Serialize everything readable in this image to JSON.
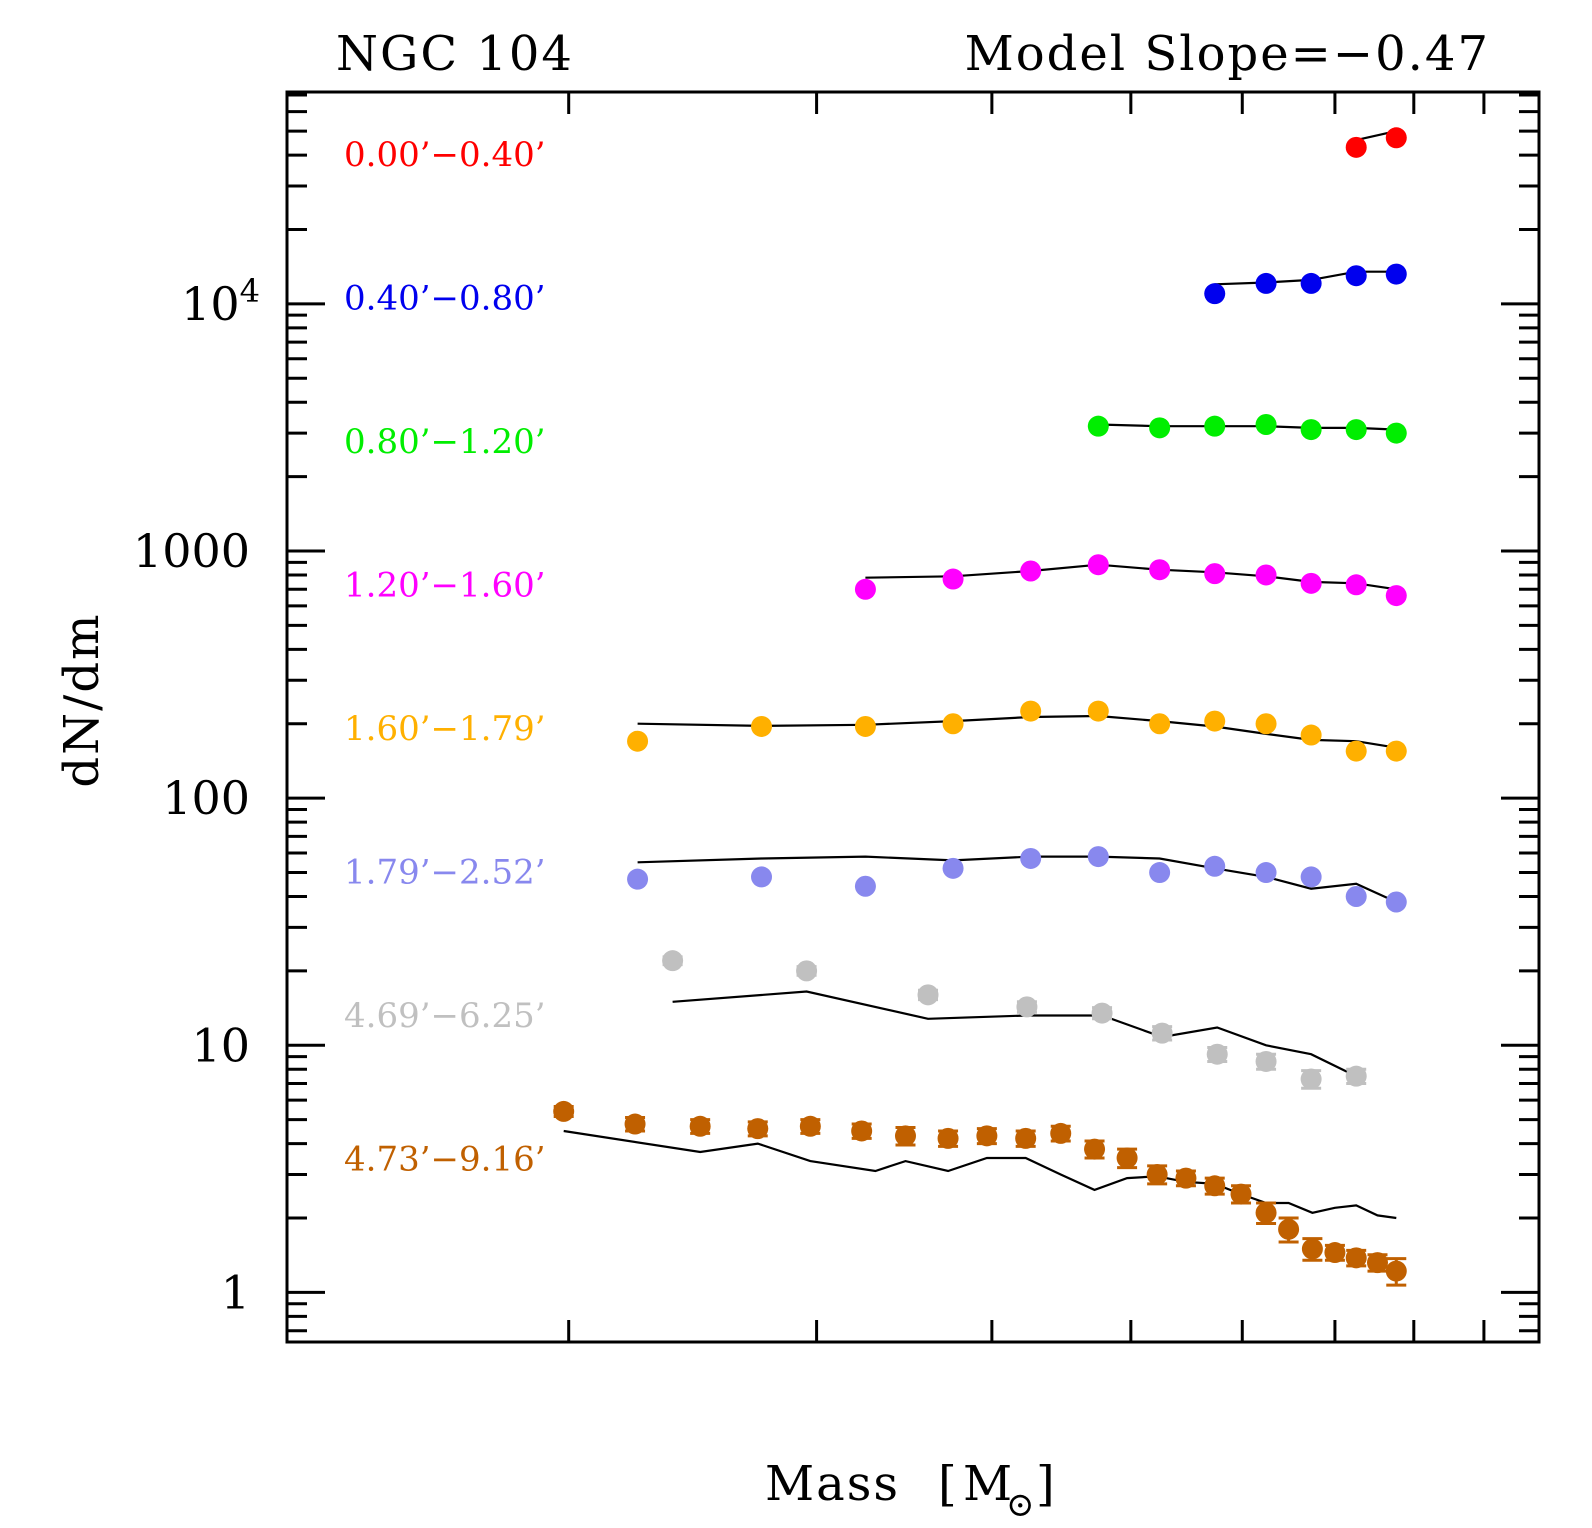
{
  "chart_data": {
    "type": "scatter",
    "title_left": "NGC 104",
    "title_right": "Model Slope=−0.47",
    "xlabel": "Mass",
    "xlabel_unit_symbol": "M",
    "xlabel_unit_sub": "⊙",
    "ylabel": "dN/dm",
    "yscale": "log",
    "ylim": [
      0.63,
      72000
    ],
    "xlim": [
      0.0,
      1.0
    ],
    "xticks": [
      0.225,
      0.423,
      0.563,
      0.674,
      0.763,
      0.837,
      0.9,
      0.956
    ],
    "ytick_labels": [
      {
        "value": 10000,
        "base": "10",
        "exp": "4"
      },
      {
        "value": 1000,
        "label": "1000"
      },
      {
        "value": 100,
        "label": "100"
      },
      {
        "value": 10,
        "label": "10"
      },
      {
        "value": 1,
        "label": "1"
      }
    ],
    "series": [
      {
        "name": "0.00’−0.40’",
        "color": "#ff0000",
        "x": [
          0.854,
          0.886
        ],
        "y": [
          43000,
          47000
        ],
        "err": [
          0,
          0
        ],
        "model_x": [
          0.854,
          0.886
        ],
        "model_y": [
          46000,
          50000
        ]
      },
      {
        "name": "0.40’−0.80’",
        "color": "#0000ee",
        "x": [
          0.741,
          0.782,
          0.818,
          0.854,
          0.886
        ],
        "y": [
          11000,
          12100,
          12100,
          13000,
          13200
        ],
        "err": [
          0,
          0,
          0,
          0,
          0
        ],
        "model_x": [
          0.741,
          0.782,
          0.818,
          0.854,
          0.886
        ],
        "model_y": [
          12000,
          12200,
          12500,
          13500,
          13500
        ]
      },
      {
        "name": "0.80’−1.20’",
        "color": "#00ee00",
        "x": [
          0.648,
          0.697,
          0.741,
          0.782,
          0.818,
          0.854,
          0.886
        ],
        "y": [
          3200,
          3150,
          3200,
          3250,
          3100,
          3100,
          3000
        ],
        "err": [
          0,
          0,
          0,
          0,
          0,
          0,
          0
        ],
        "model_x": [
          0.648,
          0.697,
          0.741,
          0.782,
          0.818,
          0.854,
          0.886
        ],
        "model_y": [
          3250,
          3200,
          3200,
          3200,
          3150,
          3150,
          3100
        ]
      },
      {
        "name": "1.20’−1.60’",
        "color": "#ff00ff",
        "x": [
          0.462,
          0.532,
          0.594,
          0.648,
          0.697,
          0.741,
          0.782,
          0.818,
          0.854,
          0.886
        ],
        "y": [
          700,
          770,
          830,
          880,
          840,
          810,
          800,
          740,
          730,
          660
        ],
        "err": [
          0,
          0,
          0,
          0,
          0,
          0,
          0,
          0,
          0,
          0
        ],
        "model_x": [
          0.462,
          0.532,
          0.594,
          0.648,
          0.697,
          0.741,
          0.782,
          0.818,
          0.854,
          0.886
        ],
        "model_y": [
          780,
          790,
          830,
          880,
          840,
          820,
          790,
          750,
          740,
          700
        ]
      },
      {
        "name": "1.60’−1.79’",
        "color": "#ffb000",
        "x": [
          0.28,
          0.379,
          0.462,
          0.532,
          0.594,
          0.648,
          0.697,
          0.741,
          0.782,
          0.818,
          0.854,
          0.886
        ],
        "y": [
          170,
          195,
          195,
          200,
          225,
          225,
          200,
          205,
          200,
          180,
          155,
          155
        ],
        "err": [
          0,
          0,
          0,
          0,
          0,
          0,
          0,
          0,
          0,
          0,
          0,
          0
        ],
        "model_x": [
          0.28,
          0.379,
          0.462,
          0.532,
          0.594,
          0.648,
          0.697,
          0.741,
          0.782,
          0.818,
          0.854,
          0.886
        ],
        "model_y": [
          200,
          196,
          198,
          205,
          213,
          215,
          205,
          195,
          182,
          172,
          170,
          160
        ]
      },
      {
        "name": "1.79’−2.52’",
        "color": "#8888ee",
        "x": [
          0.28,
          0.379,
          0.462,
          0.532,
          0.594,
          0.648,
          0.697,
          0.741,
          0.782,
          0.818,
          0.854,
          0.886
        ],
        "y": [
          47,
          48,
          44,
          52,
          57,
          58,
          50,
          53,
          50,
          48,
          40,
          38
        ],
        "err": [
          0,
          0,
          0,
          0,
          0,
          0,
          0,
          0,
          0,
          0,
          0,
          0
        ],
        "model_x": [
          0.28,
          0.379,
          0.462,
          0.532,
          0.594,
          0.648,
          0.697,
          0.741,
          0.782,
          0.818,
          0.854,
          0.886
        ],
        "model_y": [
          55,
          57,
          58,
          56,
          58,
          58,
          57,
          52,
          48,
          43,
          45,
          38
        ]
      },
      {
        "name": "4.69’−6.25’",
        "color": "#c0c0c0",
        "x": [
          0.308,
          0.415,
          0.512,
          0.591,
          0.651,
          0.699,
          0.743,
          0.782,
          0.818,
          0.854
        ],
        "y": [
          22,
          20,
          16,
          14.3,
          13.5,
          11.2,
          9.2,
          8.6,
          7.3,
          7.5
        ],
        "err": [
          0.8,
          0.8,
          0.7,
          0.7,
          0.7,
          0.7,
          0.6,
          0.6,
          0.6,
          0.5
        ],
        "model_x": [
          0.308,
          0.415,
          0.512,
          0.591,
          0.651,
          0.699,
          0.743,
          0.782,
          0.818,
          0.854
        ],
        "model_y": [
          15,
          16.5,
          12.8,
          13.2,
          13.2,
          10.8,
          11.8,
          10.0,
          9.2,
          7.5
        ]
      },
      {
        "name": "4.73’−9.16’",
        "color": "#c06000",
        "x": [
          0.221,
          0.278,
          0.33,
          0.376,
          0.418,
          0.459,
          0.494,
          0.528,
          0.559,
          0.59,
          0.618,
          0.645,
          0.671,
          0.695,
          0.718,
          0.741,
          0.762,
          0.782,
          0.8,
          0.819,
          0.837,
          0.854,
          0.871,
          0.886
        ],
        "y": [
          5.4,
          4.8,
          4.7,
          4.6,
          4.7,
          4.5,
          4.3,
          4.2,
          4.3,
          4.2,
          4.4,
          3.8,
          3.5,
          3.0,
          2.9,
          2.7,
          2.5,
          2.1,
          1.8,
          1.5,
          1.45,
          1.38,
          1.32,
          1.22
        ],
        "err": [
          0.25,
          0.3,
          0.3,
          0.3,
          0.3,
          0.3,
          0.35,
          0.3,
          0.3,
          0.3,
          0.3,
          0.3,
          0.3,
          0.25,
          0.2,
          0.2,
          0.2,
          0.2,
          0.2,
          0.15,
          0.1,
          0.1,
          0.1,
          0.15
        ],
        "model_x": [
          0.221,
          0.33,
          0.376,
          0.418,
          0.47,
          0.494,
          0.528,
          0.559,
          0.59,
          0.618,
          0.645,
          0.671,
          0.695,
          0.718,
          0.741,
          0.762,
          0.782,
          0.8,
          0.819,
          0.837,
          0.854,
          0.871,
          0.886
        ],
        "model_y": [
          4.5,
          3.7,
          4.0,
          3.4,
          3.1,
          3.4,
          3.1,
          3.5,
          3.5,
          3.0,
          2.6,
          2.9,
          2.95,
          2.8,
          2.75,
          2.5,
          2.3,
          2.3,
          2.1,
          2.2,
          2.25,
          2.05,
          2.0
        ]
      }
    ]
  }
}
